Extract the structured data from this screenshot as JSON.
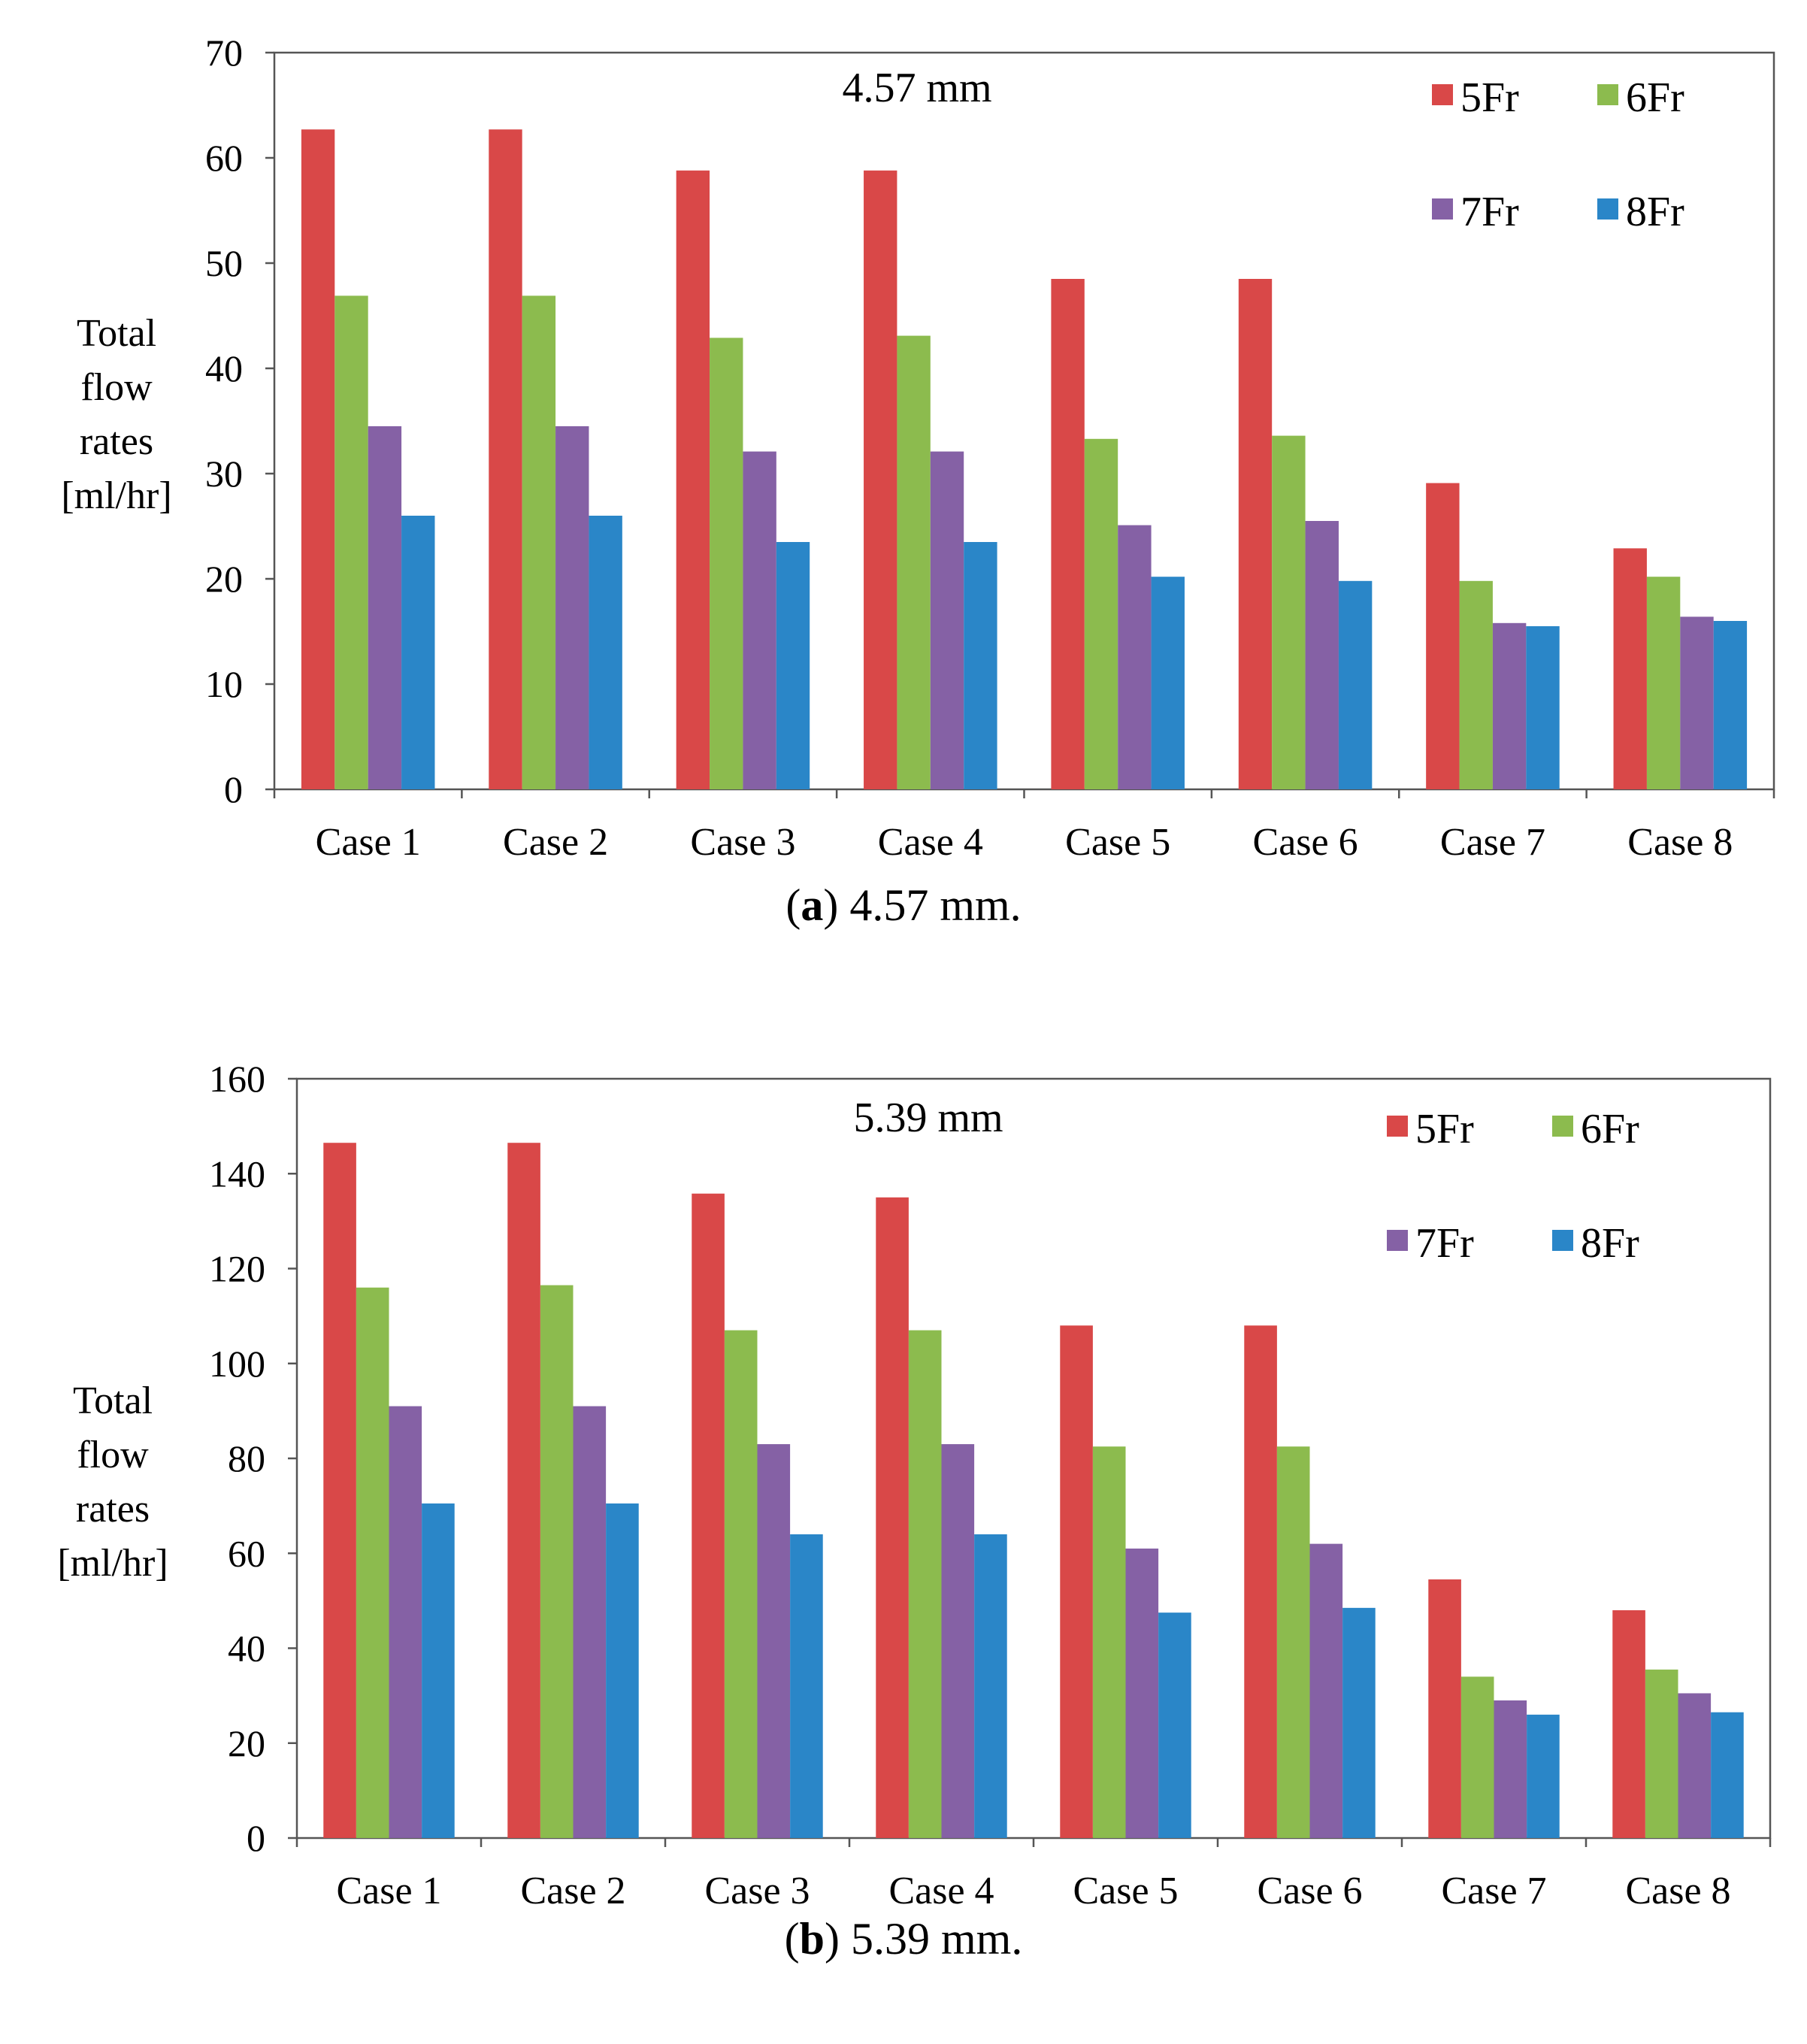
{
  "chart_data": [
    {
      "type": "bar",
      "title": "4.57 mm",
      "ylabel_lines": [
        "Total",
        "flow",
        "rates",
        "[ml/hr]"
      ],
      "xlabel": "",
      "ylim": [
        0,
        70
      ],
      "ytick_step": 10,
      "categories": [
        "Case 1",
        "Case 2",
        "Case 3",
        "Case 4",
        "Case 5",
        "Case 6",
        "Case 7",
        "Case 8"
      ],
      "series": [
        {
          "name": "5Fr",
          "color": "#d94848",
          "values": [
            62.7,
            62.7,
            58.8,
            58.8,
            48.5,
            48.5,
            29.1,
            22.9
          ]
        },
        {
          "name": "6Fr",
          "color": "#8cbb4e",
          "values": [
            46.9,
            46.9,
            42.9,
            43.1,
            33.3,
            33.6,
            19.8,
            20.2
          ]
        },
        {
          "name": "7Fr",
          "color": "#8561a5",
          "values": [
            34.5,
            34.5,
            32.1,
            32.1,
            25.1,
            25.5,
            15.8,
            16.4
          ]
        },
        {
          "name": "8Fr",
          "color": "#2a86c8",
          "values": [
            26.0,
            26.0,
            23.5,
            23.5,
            20.2,
            19.8,
            15.5,
            16.0
          ]
        }
      ],
      "legend": "top-right",
      "caption_letter": "a",
      "caption_text": "4.57 mm."
    },
    {
      "type": "bar",
      "title": "5.39 mm",
      "ylabel_lines": [
        "Total",
        "flow",
        "rates",
        "[ml/hr]"
      ],
      "xlabel": "",
      "ylim": [
        0,
        160
      ],
      "ytick_step": 20,
      "categories": [
        "Case 1",
        "Case 2",
        "Case 3",
        "Case 4",
        "Case 5",
        "Case 6",
        "Case 7",
        "Case 8"
      ],
      "series": [
        {
          "name": "5Fr",
          "color": "#d94848",
          "values": [
            146.5,
            146.5,
            135.8,
            135.0,
            108.0,
            108.0,
            54.5,
            48.0
          ]
        },
        {
          "name": "6Fr",
          "color": "#8cbb4e",
          "values": [
            116.0,
            116.5,
            107.0,
            107.0,
            82.5,
            82.5,
            34.0,
            35.5
          ]
        },
        {
          "name": "7Fr",
          "color": "#8561a5",
          "values": [
            91.0,
            91.0,
            83.0,
            83.0,
            61.0,
            62.0,
            29.0,
            30.5
          ]
        },
        {
          "name": "8Fr",
          "color": "#2a86c8",
          "values": [
            70.5,
            70.5,
            64.0,
            64.0,
            47.5,
            48.5,
            26.0,
            26.5
          ]
        }
      ],
      "legend": "top-right",
      "caption_letter": "b",
      "caption_text": "5.39 mm."
    }
  ]
}
